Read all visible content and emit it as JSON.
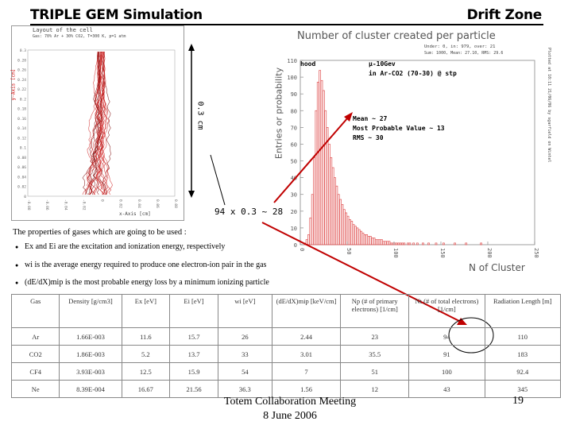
{
  "slide": {
    "title": "TRIPLE GEM Simulation",
    "section": "Drift Zone",
    "footer_line1": "Totem Collaboration Meeting",
    "footer_line2": "8 June 2006",
    "page_number": "19"
  },
  "layout_panel": {
    "title": "Layout of the cell",
    "subtitle": "Gas: 70% Ar + 30% CO2, T=300 K, p=1 atm",
    "y_axis_label": "y-Axis [cm]",
    "x_axis_label": "x-Axis [cm]",
    "y_ticks": [
      "0.3",
      "0.28",
      "0.26",
      "0.24",
      "0.22",
      "0.2",
      "0.18",
      "0.16",
      "0.14",
      "0.12",
      "0.1",
      "0.08",
      "0.06",
      "0.04",
      "0.02",
      "0"
    ],
    "x_ticks": [
      "-0.08",
      "-0.06",
      "-0.04",
      "-0.02",
      "0",
      "0.02",
      "0.04",
      "0.06",
      "0.08"
    ],
    "gap_label": "0.3 cm"
  },
  "histogram": {
    "title": "Number of cluster created per particle",
    "y_axis_label": "Entries or probability",
    "x_axis_label": "N of Cluster",
    "stats_line1": "Under: 0, in: 979, over: 21",
    "stats_line2": "Sum: 1000, Mean: 27.10, RMS: 29.6",
    "side_text": "Plotted at 10:11 21/06/06 by sgarfield on Wintel",
    "legend_hood": "hood",
    "legend_particle": "μ-10Gev",
    "legend_gas": "in Ar-CO2 (70-30) @ stp",
    "annotation_mean": "Mean ~ 27",
    "annotation_mpv": "Most Probable Value ~ 13",
    "annotation_rms": "RMS ~ 30",
    "calc_label": "94 x 0.3 ~ 28"
  },
  "chart_data": {
    "type": "bar",
    "title": "Number of cluster created per particle",
    "xlabel": "N of Cluster",
    "ylabel": "Entries or probability",
    "xlim": [
      0,
      250
    ],
    "ylim": [
      0,
      110
    ],
    "y_ticks": [
      0,
      10,
      20,
      30,
      40,
      50,
      60,
      70,
      80,
      90,
      100,
      110
    ],
    "x_ticks": [
      0,
      50,
      100,
      150,
      200,
      250
    ],
    "bin_width": 2,
    "values": [
      0,
      0,
      1,
      3,
      6,
      16,
      30,
      52,
      80,
      97,
      104,
      98,
      92,
      80,
      70,
      60,
      52,
      46,
      40,
      35,
      30,
      27,
      24,
      21,
      19,
      17,
      15,
      14,
      12,
      11,
      10,
      9,
      8,
      7,
      6,
      6,
      5,
      5,
      4,
      4,
      3,
      3,
      3,
      3,
      2,
      2,
      2,
      2,
      1,
      1,
      1,
      1,
      1,
      1,
      1,
      1,
      0,
      1,
      1,
      0,
      1,
      0,
      1,
      0,
      0,
      1,
      0,
      0,
      1,
      0,
      0,
      0,
      1,
      0,
      0,
      0,
      1,
      0,
      0,
      0,
      0,
      0,
      1,
      0,
      0,
      0,
      0,
      0,
      1,
      0,
      0,
      0,
      0,
      0,
      0,
      0,
      1,
      0,
      0,
      0,
      0,
      0,
      0,
      0,
      0,
      0,
      0,
      0,
      0,
      0,
      0,
      0,
      0,
      0,
      0,
      0,
      0,
      0,
      0,
      0,
      0,
      0,
      0,
      0,
      0
    ]
  },
  "gas_properties": {
    "intro": "The properties of gases which are going to be used :",
    "bullets": [
      "Ex and Ei are the excitation and ionization energy, respectively",
      "wi is the average energy required to produce one electron-ion pair in the gas",
      "(dE/dX)mip is the most probable energy loss by a minimum ionizing particle"
    ],
    "headers": [
      "Gas",
      "Density [g/cm3]",
      "Ex [eV]",
      "Ei [eV]",
      "wi [eV]",
      "(dE/dX)mip [keV/cm]",
      "Np (# of primary electrons) [1/cm]",
      "Nt (# of total electrons) [1/cm]",
      "Radiation Length [m]"
    ],
    "rows": [
      [
        "Ar",
        "1.66E-003",
        "11.6",
        "15.7",
        "26",
        "2.44",
        "23",
        "94",
        "110"
      ],
      [
        "CO2",
        "1.86E-003",
        "5.2",
        "13.7",
        "33",
        "3.01",
        "35.5",
        "91",
        "183"
      ],
      [
        "CF4",
        "3.93E-003",
        "12.5",
        "15.9",
        "54",
        "7",
        "51",
        "100",
        "92.4"
      ],
      [
        "Ne",
        "8.39E-004",
        "16.67",
        "21.56",
        "36.3",
        "1.56",
        "12",
        "43",
        "345"
      ]
    ]
  }
}
